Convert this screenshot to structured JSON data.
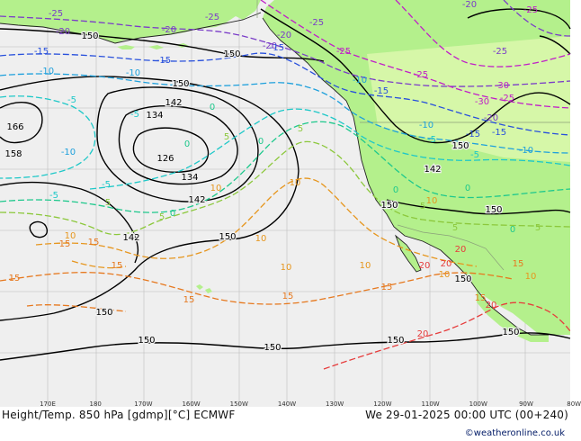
{
  "map": {
    "background_color": "#efefef",
    "land_color": "#b4f08c",
    "land_light_color": "#d6f7a8",
    "coast_color": "#222222",
    "border_color": "#8aa07a",
    "height_contour_color": "#000000",
    "height_labels": [
      "150",
      "150",
      "150",
      "166",
      "158",
      "142",
      "134",
      "126",
      "134",
      "142",
      "142",
      "150",
      "150",
      "150",
      "150",
      "150",
      "150",
      "150",
      "142",
      "150",
      "150",
      "150"
    ],
    "temp_labels": [
      {
        "text": "-25",
        "color": "#7a3cc8"
      },
      {
        "text": "-25",
        "color": "#7a3cc8"
      },
      {
        "text": "-25",
        "color": "#7a3cc8"
      },
      {
        "text": "-20",
        "color": "#7a3cc8"
      },
      {
        "text": "-20",
        "color": "#7a3cc8"
      },
      {
        "text": "-20",
        "color": "#7a3cc8"
      },
      {
        "text": "-20",
        "color": "#7a3cc8"
      },
      {
        "text": "-25",
        "color": "#c01ec8"
      },
      {
        "text": "-25",
        "color": "#c01ec8"
      },
      {
        "text": "-20",
        "color": "#7a3cc8"
      },
      {
        "text": "-25",
        "color": "#c01ec8"
      },
      {
        "text": "-25",
        "color": "#7a3cc8"
      },
      {
        "text": "-30",
        "color": "#c01ec8"
      },
      {
        "text": "-30",
        "color": "#c01ec8"
      },
      {
        "text": "-25",
        "color": "#c01ec8"
      },
      {
        "text": "-20",
        "color": "#7a3cc8"
      },
      {
        "text": "-15",
        "color": "#2850dc"
      },
      {
        "text": "-15",
        "color": "#2850dc"
      },
      {
        "text": "-15",
        "color": "#2850dc"
      },
      {
        "text": "-15",
        "color": "#2850dc"
      },
      {
        "text": "-15",
        "color": "#2850dc"
      },
      {
        "text": "-15",
        "color": "#2850dc"
      },
      {
        "text": "-10",
        "color": "#1ea0dc"
      },
      {
        "text": "-10",
        "color": "#1ea0dc"
      },
      {
        "text": "-10",
        "color": "#1ea0dc"
      },
      {
        "text": "-10",
        "color": "#1ea0dc"
      },
      {
        "text": "-10",
        "color": "#1ea0dc"
      },
      {
        "text": "-10",
        "color": "#1ea0dc"
      },
      {
        "text": "-5",
        "color": "#1ec8c8"
      },
      {
        "text": "-5",
        "color": "#1ec8c8"
      },
      {
        "text": "-5",
        "color": "#1ec8c8"
      },
      {
        "text": "-5",
        "color": "#1ec8c8"
      },
      {
        "text": "-5",
        "color": "#1ec8c8"
      },
      {
        "text": "-5",
        "color": "#1ec8c8"
      },
      {
        "text": "0",
        "color": "#1ec88c"
      },
      {
        "text": "0",
        "color": "#1ec88c"
      },
      {
        "text": "0",
        "color": "#1ec88c"
      },
      {
        "text": "0",
        "color": "#1ec88c"
      },
      {
        "text": "0",
        "color": "#1ec88c"
      },
      {
        "text": "0",
        "color": "#1ec88c"
      },
      {
        "text": "0",
        "color": "#1ec88c"
      },
      {
        "text": "5",
        "color": "#8cc83c"
      },
      {
        "text": "5",
        "color": "#8cc83c"
      },
      {
        "text": "5",
        "color": "#8cc83c"
      },
      {
        "text": "5",
        "color": "#8cc83c"
      },
      {
        "text": "5",
        "color": "#8cc83c"
      },
      {
        "text": "5",
        "color": "#8cc83c"
      },
      {
        "text": "5",
        "color": "#8cc83c"
      },
      {
        "text": "10",
        "color": "#e6961e"
      },
      {
        "text": "10",
        "color": "#e6961e"
      },
      {
        "text": "10",
        "color": "#e6961e"
      },
      {
        "text": "10",
        "color": "#e6961e"
      },
      {
        "text": "10",
        "color": "#e6961e"
      },
      {
        "text": "10",
        "color": "#e6961e"
      },
      {
        "text": "10",
        "color": "#e6961e"
      },
      {
        "text": "10",
        "color": "#e6961e"
      },
      {
        "text": "10",
        "color": "#e6961e"
      },
      {
        "text": "15",
        "color": "#e6781e"
      },
      {
        "text": "15",
        "color": "#e6781e"
      },
      {
        "text": "15",
        "color": "#e6781e"
      },
      {
        "text": "15",
        "color": "#e6781e"
      },
      {
        "text": "15",
        "color": "#e6781e"
      },
      {
        "text": "15",
        "color": "#e6781e"
      },
      {
        "text": "15",
        "color": "#e6781e"
      },
      {
        "text": "15",
        "color": "#e6781e"
      },
      {
        "text": "15",
        "color": "#e6781e"
      },
      {
        "text": "20",
        "color": "#e63c3c"
      },
      {
        "text": "20",
        "color": "#e63c3c"
      },
      {
        "text": "20",
        "color": "#e63c3c"
      },
      {
        "text": "20",
        "color": "#e63c3c"
      },
      {
        "text": "20",
        "color": "#e63c3c"
      }
    ]
  },
  "longitude_labels": [
    "170E",
    "180",
    "170W",
    "160W",
    "150W",
    "140W",
    "130W",
    "120W",
    "110W",
    "100W",
    "90W",
    "80W"
  ],
  "footer": {
    "title": "Height/Temp. 850 hPa [gdmp][°C] ECMWF",
    "datetime": "We 29-01-2025 00:00 UTC (00+240)",
    "credit": "©weatheronline.co.uk"
  }
}
